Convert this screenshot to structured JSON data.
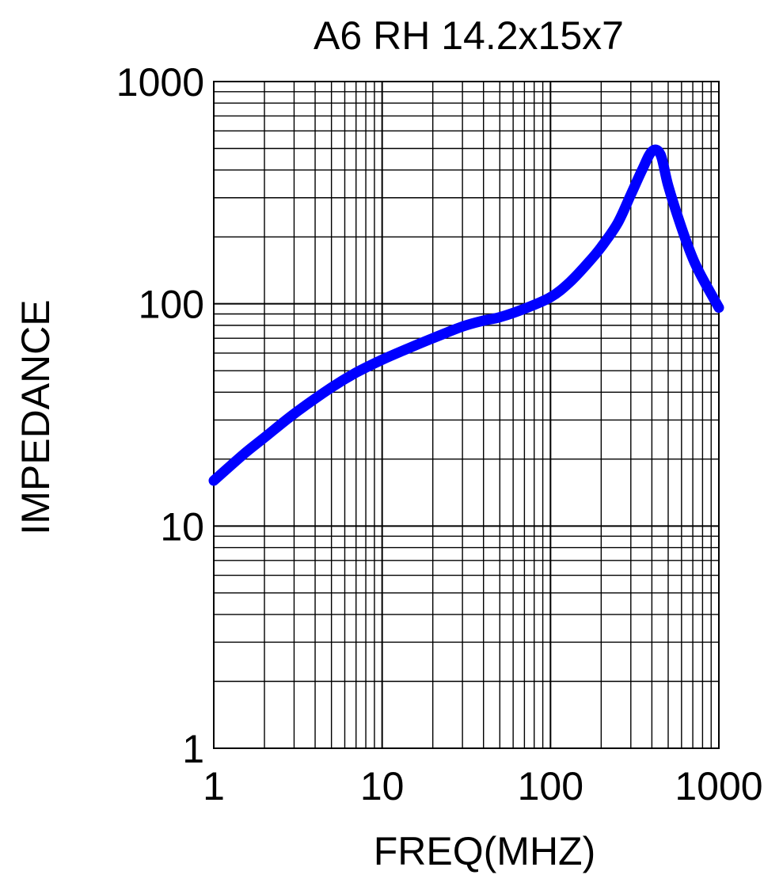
{
  "chart_data": {
    "type": "line",
    "title": "A6 RH 14.2x15x7",
    "xlabel": "FREQ(MHZ)",
    "ylabel": "IMPEDANCE",
    "x_scale": "log",
    "y_scale": "log",
    "xlim": [
      1,
      1000
    ],
    "ylim": [
      1,
      1000
    ],
    "x_ticks": [
      "1",
      "10",
      "100",
      "1000"
    ],
    "y_ticks": [
      "1",
      "10",
      "100",
      "1000"
    ],
    "grid": true,
    "legend": "none",
    "series": [
      {
        "color": "#0000ff",
        "x": [
          1,
          1.5,
          2,
          3,
          5,
          7,
          10,
          15,
          20,
          30,
          40,
          50,
          70,
          100,
          130,
          170,
          200,
          250,
          300,
          350,
          400,
          450,
          500,
          600,
          700,
          800,
          1000
        ],
        "y": [
          16,
          21,
          25,
          32,
          42,
          49,
          56,
          64,
          70,
          79,
          84,
          87,
          95,
          107,
          125,
          155,
          180,
          230,
          310,
          400,
          485,
          470,
          340,
          220,
          160,
          130,
          96
        ]
      }
    ]
  }
}
